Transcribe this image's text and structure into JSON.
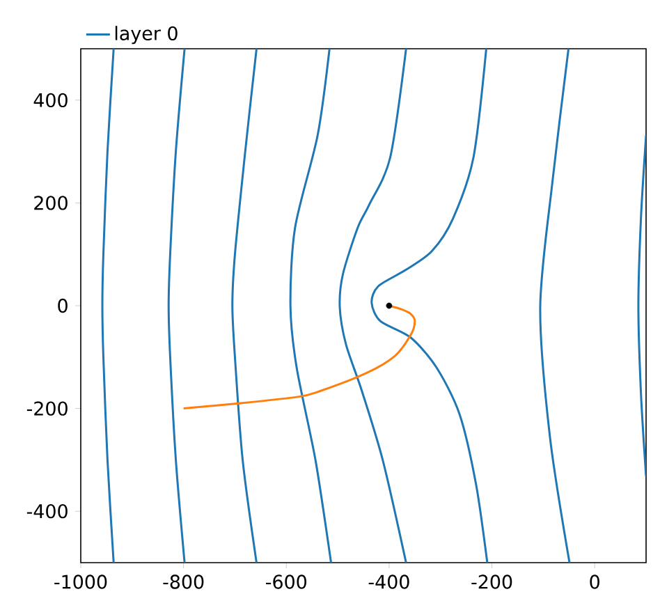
{
  "chart_data": {
    "type": "line",
    "xlim": [
      -1000,
      100
    ],
    "ylim": [
      -500,
      500
    ],
    "xticks": [
      -1000,
      -800,
      -600,
      -400,
      -200,
      0
    ],
    "yticks": [
      -400,
      -200,
      0,
      200,
      400
    ],
    "legend": "top left",
    "series": [
      {
        "name": "layer 0",
        "color": "#1f77b4",
        "x": [
          -936,
          -948,
          -956,
          -958,
          -956,
          -948,
          -936
        ],
        "values": [
          500,
          300,
          100,
          0,
          -100,
          -300,
          -500
        ]
      },
      {
        "color": "#1f77b4",
        "x": [
          -798,
          -815,
          -826,
          -829,
          -826,
          -815,
          -798
        ],
        "values": [
          500,
          300,
          100,
          0,
          -100,
          -300,
          -500
        ]
      },
      {
        "color": "#1f77b4",
        "x": [
          -658,
          -680,
          -700,
          -705,
          -700,
          -685,
          -658
        ],
        "values": [
          500,
          300,
          100,
          0,
          -100,
          -300,
          -500
        ]
      },
      {
        "color": "#1f77b4",
        "x": [
          -516,
          -539,
          -583,
          -592,
          -580,
          -543,
          -513
        ],
        "values": [
          500,
          332,
          152,
          0,
          -120,
          -302,
          -500
        ]
      },
      {
        "color": "#1f77b4",
        "x": [
          -367,
          -398,
          -439,
          -461,
          -490,
          -496,
          -484,
          -453,
          -412,
          -367
        ],
        "values": [
          500,
          288,
          196,
          152,
          61,
          -3,
          -75,
          -166,
          -302,
          -500
        ]
      },
      {
        "color": "#1f77b4",
        "x": [
          -211,
          -236,
          -276,
          -317,
          -367,
          -421,
          -434,
          -417,
          -358,
          -308,
          -263,
          -231,
          -209
        ],
        "values": [
          500,
          288,
          169,
          106,
          70,
          38,
          6,
          -30,
          -62,
          -120,
          -211,
          -347,
          -500
        ]
      },
      {
        "color": "#1f77b4",
        "x": [
          -51,
          -82,
          -106,
          -87,
          -49
        ],
        "values": [
          500,
          243,
          -3,
          -256,
          -500
        ]
      },
      {
        "color": "#1f77b4",
        "x": [
          100,
          90,
          85,
          90,
          100
        ],
        "values": [
          332,
          170,
          0,
          -170,
          -333
        ]
      },
      {
        "color": "#ff7f0e",
        "x": [
          -800,
          -692,
          -575,
          -534,
          -444,
          -389,
          -358,
          -350,
          -358,
          -376,
          -400
        ],
        "values": [
          -200,
          -190,
          -177,
          -166,
          -131,
          -98,
          -57,
          -30,
          -16,
          -7,
          0
        ]
      },
      {
        "type": "scatter",
        "marker": "circle",
        "color": "#000000",
        "x": [
          -400
        ],
        "values": [
          0
        ]
      }
    ]
  }
}
